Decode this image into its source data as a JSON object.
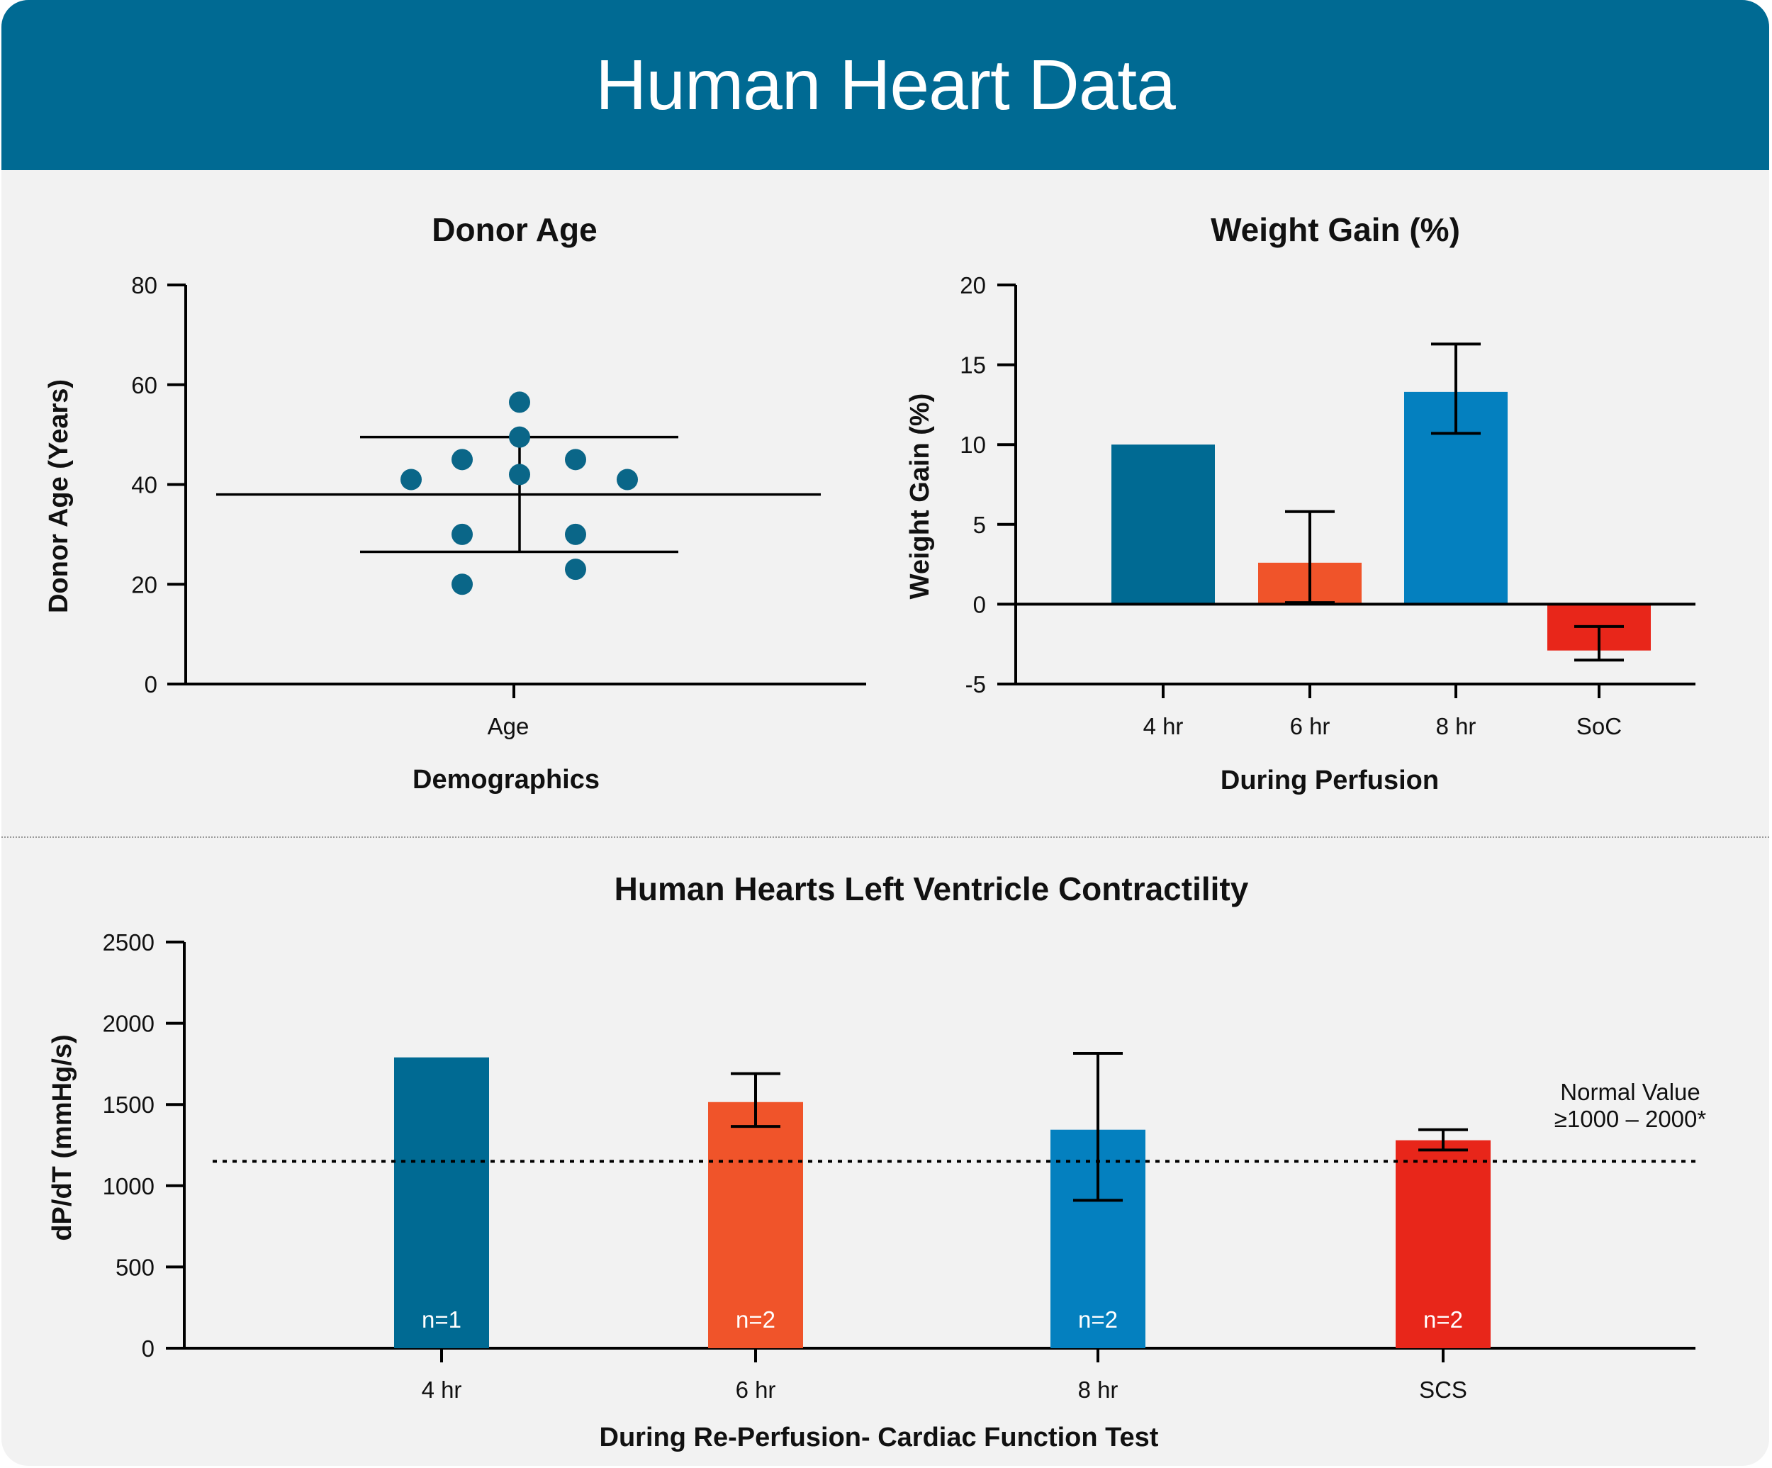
{
  "header": {
    "title": "Human Heart Data"
  },
  "colors": {
    "header_bg": "#006a93",
    "panel_bg": "#f2f2f2",
    "dot": "#0a6688",
    "bar_4hr": "#006a93",
    "bar_6hr": "#f0542a",
    "bar_8hr": "#0480bf",
    "bar_soc": "#e8261a"
  },
  "chart_data": [
    {
      "type": "scatter",
      "title": "Donor Age",
      "xlabel": "Demographics",
      "ylabel": "Donor Age (Years)",
      "categories": [
        "Age"
      ],
      "ylim": [
        0,
        80
      ],
      "yticks": [
        0,
        20,
        40,
        60,
        80
      ],
      "grid": false,
      "points": [
        {
          "x": "Age",
          "y": 56.5
        },
        {
          "x": "Age",
          "y": 49.5
        },
        {
          "x": "Age",
          "y": 42
        },
        {
          "x": "Age",
          "y": 45
        },
        {
          "x": "Age",
          "y": 45
        },
        {
          "x": "Age",
          "y": 41
        },
        {
          "x": "Age",
          "y": 41
        },
        {
          "x": "Age",
          "y": 30
        },
        {
          "x": "Age",
          "y": 30
        },
        {
          "x": "Age",
          "y": 20
        },
        {
          "x": "Age",
          "y": 23
        }
      ],
      "mean": 38,
      "sd_upper": 49.5,
      "sd_lower": 26.5
    },
    {
      "type": "bar",
      "title": "Weight Gain (%)",
      "xlabel": "During Perfusion",
      "ylabel": "Weight Gain (%)",
      "categories": [
        "4 hr",
        "6 hr",
        "8 hr",
        "SoC"
      ],
      "values": [
        10,
        2.6,
        13.3,
        -2.9
      ],
      "error_high": [
        null,
        5.8,
        16.3,
        -1.4
      ],
      "error_low": [
        null,
        0.1,
        10.7,
        -3.5
      ],
      "ylim": [
        -5,
        20
      ],
      "yticks": [
        "-5",
        "0",
        "5",
        "10",
        "15",
        "20"
      ],
      "grid": false
    },
    {
      "type": "bar",
      "title": "Human Hearts Left Ventricle Contractility",
      "xlabel": "During Re-Perfusion- Cardiac Function Test",
      "ylabel": "dP/dT (mmHg/s)",
      "categories": [
        "4 hr",
        "6 hr",
        "8 hr",
        "SCS"
      ],
      "values": [
        1790,
        1515,
        1345,
        1280
      ],
      "error_high": [
        null,
        1690,
        1815,
        1345
      ],
      "error_low": [
        null,
        1365,
        910,
        1220
      ],
      "sample_labels": [
        "n=1",
        "n=2",
        "n=2",
        "n=2"
      ],
      "ylim": [
        0,
        2500
      ],
      "yticks": [
        0,
        500,
        1000,
        1500,
        2000,
        2500
      ],
      "reference_line": {
        "value": 1150,
        "label_1": "Normal Value",
        "label_2": "≥1000 – 2000*"
      },
      "grid": false
    }
  ]
}
